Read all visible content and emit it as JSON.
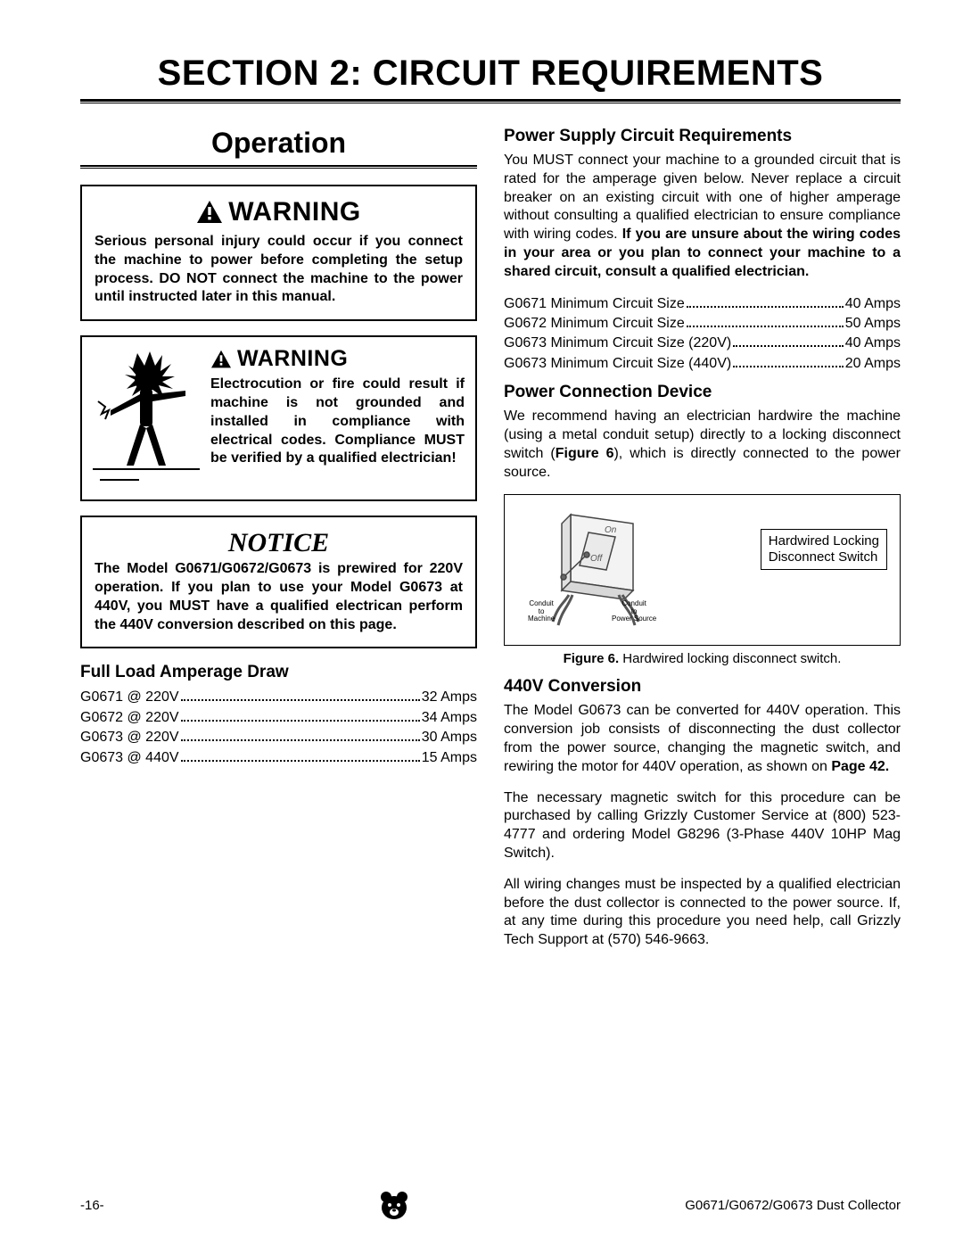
{
  "section_title": "SECTION 2: CIRCUIT REQUIREMENTS",
  "left": {
    "op_title": "Operation",
    "warn1": {
      "label": "WARNING",
      "text": "Serious personal injury could occur if you connect the machine to power before completing the setup process. DO NOT connect the machine to the power until instructed later in this manual."
    },
    "warn2": {
      "label": "WARNING",
      "text": "Electrocution or fire could result if machine is not grounded and installed in compliance with electrical codes. Compliance MUST be verified by a qualified electrician!"
    },
    "notice": {
      "label": "NOTICE",
      "text": "The Model G0671/G0672/G0673 is prewired for 220V operation. If you plan to use your Model G0673 at 440V, you MUST have a qualified electrican perform the 440V conversion described on this page."
    },
    "fla": {
      "heading": "Full Load Amperage Draw",
      "rows": [
        {
          "label": "G0671 @ 220V",
          "value": "32 Amps"
        },
        {
          "label": "G0672 @ 220V",
          "value": "34 Amps"
        },
        {
          "label": "G0673 @ 220V",
          "value": "30 Amps"
        },
        {
          "label": "G0673 @ 440V",
          "value": "15 Amps"
        }
      ]
    }
  },
  "right": {
    "pscr": {
      "heading": "Power Supply Circuit Requirements",
      "para_plain": "You MUST connect your machine to a grounded circuit that is rated for the amperage given below. Never replace a circuit breaker on an existing circuit with one of higher amperage without consulting a qualified electrician to ensure compliance with wiring codes. ",
      "para_bold": "If you are unsure about the wiring codes in your area or you plan to connect your machine to a shared circuit, consult a qualified electrician.",
      "rows": [
        {
          "label": "G0671 Minimum Circuit Size",
          "value": "40 Amps"
        },
        {
          "label": "G0672 Minimum Circuit Size",
          "value": "50 Amps"
        },
        {
          "label": "G0673 Minimum Circuit Size (220V)",
          "value": "40 Amps"
        },
        {
          "label": "G0673 Minimum Circuit Size (440V)",
          "value": "20 Amps"
        }
      ]
    },
    "pcd": {
      "heading": "Power Connection Device",
      "para_pre": "We recommend having an electrician hardwire the machine (using a metal conduit setup) directly to a locking disconnect switch (",
      "fig_ref": "Figure 6",
      "para_post": "), which is directly connected to the power source.",
      "fig": {
        "label": "Hardwired Locking\nDisconnect Switch",
        "conduit_machine": "Conduit\nto\nMachine",
        "conduit_source": "Conduit\nto\nPower Source",
        "on": "On",
        "off": "Off",
        "caption_bold": "Figure 6.",
        "caption_rest": " Hardwired locking disconnect switch."
      }
    },
    "conv": {
      "heading": "440V Conversion",
      "p1_pre": "The Model G0673 can be converted for 440V operation. This conversion job consists of disconnecting the dust collector from the power source, changing the magnetic switch, and rewiring the motor for 440V operation, as shown on ",
      "p1_bold": "Page 42.",
      "p2": "The necessary magnetic switch for this procedure can be purchased by calling Grizzly Customer Service at (800) 523-4777 and ordering Model G8296 (3-Phase 440V 10HP Mag Switch).",
      "p3": "All wiring changes must be inspected by a qualified electrician before the dust collector is connected to the power source. If, at any time during this procedure you need help, call Grizzly Tech Support at (570) 546-9663."
    }
  },
  "footer": {
    "page": "-16-",
    "doc": "G0671/G0672/G0673 Dust Collector"
  },
  "colors": {
    "text": "#000000",
    "rule": "#000000",
    "bg": "#ffffff"
  }
}
